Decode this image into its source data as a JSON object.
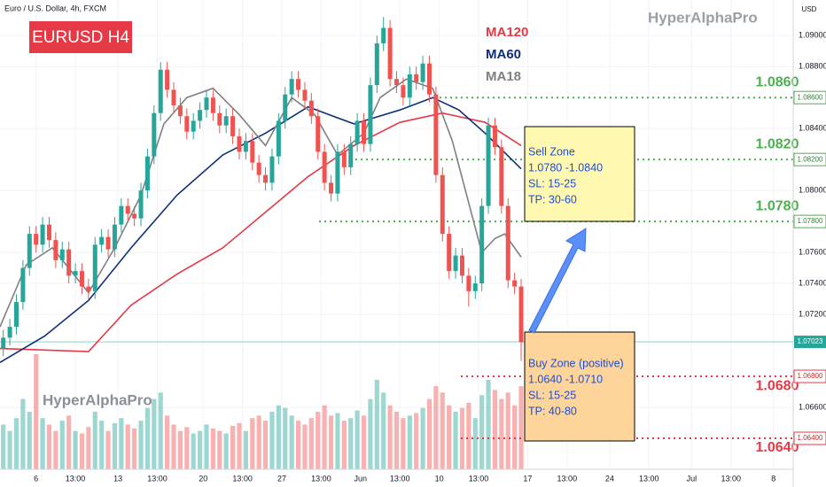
{
  "chart_data": {
    "type": "candlestick",
    "title": "EURUSD H4",
    "subtitle": "Euro / U.S. Dollar, 4h, FXCM",
    "watermark": "HyperAlphaPro",
    "currency": "USD",
    "up_color": "#26a69a",
    "down_color": "#ef5350",
    "open": [
      1.0698,
      1.0705,
      1.0712,
      1.0728,
      1.075,
      1.0772,
      1.0765,
      1.0778,
      1.0768,
      1.0755,
      1.0762,
      1.0745,
      1.0748,
      1.0738,
      1.0735,
      1.0765,
      1.077,
      1.0762,
      1.0778,
      1.079,
      1.0785,
      1.0782,
      1.08,
      1.0822,
      1.085,
      1.0878,
      1.0865,
      1.0855,
      1.0848,
      1.0838,
      1.0845,
      1.0852,
      1.086,
      1.085,
      1.0842,
      1.0848,
      1.0835,
      1.0825,
      1.0832,
      1.0818,
      1.081,
      1.0805,
      1.0822,
      1.0845,
      1.0862,
      1.0872,
      1.0865,
      1.0858,
      1.0848,
      1.0825,
      1.0805,
      1.0798,
      1.0825,
      1.0815,
      1.083,
      1.0845,
      1.083,
      1.0868,
      1.0895,
      1.0905,
      1.0872,
      1.0868,
      1.086,
      1.0875,
      1.087,
      1.0882,
      1.0862,
      1.081,
      1.0772,
      1.0748,
      1.0758,
      1.0745,
      1.0735,
      1.074,
      1.079,
      1.0842,
      1.0828,
      1.079,
      1.0742,
      1.0738
    ],
    "high": [
      1.071,
      1.0717,
      1.0733,
      1.0755,
      1.0777,
      1.0777,
      1.0783,
      1.0783,
      1.0773,
      1.0767,
      1.0767,
      1.0753,
      1.0753,
      1.0743,
      1.077,
      1.0775,
      1.0775,
      1.0783,
      1.0795,
      1.0795,
      1.079,
      1.0805,
      1.0827,
      1.0855,
      1.0883,
      1.0883,
      1.087,
      1.086,
      1.0853,
      1.085,
      1.0857,
      1.0865,
      1.0865,
      1.0855,
      1.0853,
      1.0853,
      1.084,
      1.0837,
      1.0837,
      1.0823,
      1.0815,
      1.0827,
      1.085,
      1.0867,
      1.0877,
      1.0877,
      1.087,
      1.0863,
      1.0853,
      1.083,
      1.081,
      1.083,
      1.083,
      1.0835,
      1.085,
      1.085,
      1.0873,
      1.09,
      1.0912,
      1.091,
      1.0877,
      1.0873,
      1.088,
      1.088,
      1.0887,
      1.0887,
      1.0867,
      1.0815,
      1.0777,
      1.0763,
      1.0763,
      1.075,
      1.0745,
      1.0795,
      1.0847,
      1.0847,
      1.0833,
      1.0795,
      1.0747,
      1.0743
    ],
    "low": [
      1.0693,
      1.07,
      1.0707,
      1.0723,
      1.0745,
      1.076,
      1.076,
      1.0763,
      1.075,
      1.075,
      1.074,
      1.074,
      1.0733,
      1.073,
      1.073,
      1.076,
      1.0757,
      1.0757,
      1.0773,
      1.078,
      1.0777,
      1.0777,
      1.0795,
      1.0817,
      1.0845,
      1.086,
      1.085,
      1.0843,
      1.0833,
      1.0833,
      1.084,
      1.0847,
      1.0845,
      1.0837,
      1.0837,
      1.083,
      1.082,
      1.082,
      1.0813,
      1.0805,
      1.08,
      1.08,
      1.0817,
      1.084,
      1.0857,
      1.086,
      1.0853,
      1.0843,
      1.082,
      1.08,
      1.0793,
      1.0793,
      1.081,
      1.081,
      1.0825,
      1.0825,
      1.0825,
      1.0863,
      1.089,
      1.0867,
      1.0863,
      1.0855,
      1.0855,
      1.0865,
      1.0865,
      1.0857,
      1.0805,
      1.0767,
      1.0743,
      1.0743,
      1.074,
      1.0725,
      1.073,
      1.0735,
      1.0785,
      1.0823,
      1.0785,
      1.0737,
      1.0733,
      1.069
    ],
    "close": [
      1.0705,
      1.0712,
      1.0728,
      1.075,
      1.0772,
      1.0765,
      1.0778,
      1.0768,
      1.0755,
      1.0762,
      1.0745,
      1.0748,
      1.0738,
      1.0735,
      1.0765,
      1.077,
      1.0762,
      1.0778,
      1.079,
      1.0785,
      1.0782,
      1.08,
      1.0822,
      1.085,
      1.0878,
      1.0865,
      1.0855,
      1.0848,
      1.0838,
      1.0845,
      1.0852,
      1.086,
      1.085,
      1.0842,
      1.0848,
      1.0835,
      1.0825,
      1.0832,
      1.0818,
      1.081,
      1.0805,
      1.0822,
      1.0845,
      1.0862,
      1.0872,
      1.0865,
      1.0858,
      1.0848,
      1.0825,
      1.0805,
      1.0798,
      1.0825,
      1.0815,
      1.083,
      1.0845,
      1.083,
      1.0868,
      1.0895,
      1.0905,
      1.0872,
      1.0868,
      1.086,
      1.0875,
      1.087,
      1.0882,
      1.0862,
      1.081,
      1.0772,
      1.0748,
      1.0758,
      1.0745,
      1.0735,
      1.074,
      1.079,
      1.0842,
      1.0828,
      1.079,
      1.0742,
      1.0738,
      1.0702
    ],
    "volume": [
      35,
      30,
      40,
      55,
      45,
      90,
      40,
      35,
      30,
      38,
      42,
      30,
      28,
      33,
      45,
      38,
      30,
      36,
      40,
      35,
      32,
      38,
      48,
      55,
      60,
      42,
      35,
      30,
      33,
      28,
      30,
      35,
      32,
      30,
      28,
      34,
      36,
      30,
      40,
      42,
      38,
      45,
      50,
      48,
      42,
      38,
      35,
      40,
      45,
      50,
      42,
      44,
      38,
      40,
      46,
      42,
      55,
      70,
      60,
      50,
      45,
      40,
      42,
      44,
      48,
      55,
      65,
      60,
      50,
      45,
      48,
      52,
      40,
      58,
      70,
      62,
      55,
      60,
      50,
      65
    ],
    "moving_averages": [
      {
        "name": "MA120",
        "color": "#e53945",
        "x": [
          0,
          13.5,
          20,
          27,
          34,
          40.5,
          47,
          54,
          61,
          67.5,
          74,
          79.5
        ],
        "values": [
          1.0698,
          1.0696,
          1.0726,
          1.0746,
          1.0763,
          1.0786,
          1.0809,
          1.0829,
          1.0844,
          1.085,
          1.0844,
          1.0829
        ]
      },
      {
        "name": "MA60",
        "color": "#0d2f7a",
        "x": [
          0,
          6.8,
          13.5,
          20,
          27,
          34,
          40.5,
          47,
          54,
          61,
          66,
          70,
          74,
          79.5
        ],
        "values": [
          1.0689,
          1.0706,
          1.0729,
          1.0763,
          1.0797,
          1.0823,
          1.0837,
          1.0854,
          1.0843,
          1.0852,
          1.086,
          1.0852,
          1.0837,
          1.0814
        ]
      },
      {
        "name": "MA18",
        "color": "#808080",
        "x": [
          0,
          4,
          8,
          13.5,
          17.5,
          21.5,
          25,
          28.5,
          32.5,
          36.5,
          40.5,
          44.5,
          48,
          51.5,
          55.5,
          58,
          62,
          66,
          69,
          71.5,
          73.5,
          75.5,
          77,
          79.5
        ],
        "values": [
          1.0712,
          1.0752,
          1.0763,
          1.0734,
          1.0763,
          1.0797,
          1.0843,
          1.086,
          1.0866,
          1.0849,
          1.0829,
          1.086,
          1.0849,
          1.0823,
          1.0837,
          1.086,
          1.0872,
          1.0866,
          1.0832,
          1.0792,
          1.076,
          1.0769,
          1.0772,
          1.0757
        ]
      }
    ],
    "levels": [
      {
        "value": 1.086,
        "label": "1.0860",
        "tag": "1.08600",
        "color": "#4caf50"
      },
      {
        "value": 1.082,
        "label": "1.0820",
        "tag": "1.08200",
        "color": "#4caf50"
      },
      {
        "value": 1.078,
        "label": "1.0780",
        "tag": "1.07800",
        "color": "#4caf50"
      },
      {
        "value": 1.068,
        "label": "1.0680",
        "tag": "1.06800",
        "color": "#e53945"
      },
      {
        "value": 1.064,
        "label": "1.0640",
        "tag": "1.06400",
        "color": "#e53945"
      }
    ],
    "last_price": {
      "value": 1.07023,
      "label": "1.07023",
      "color": "#26a69a"
    },
    "zones": [
      {
        "lines": [
          "Sell Zone",
          "1.0780 -1.0840",
          "SL: 15-25",
          "TP: 30-60"
        ],
        "color": "#fff8b0"
      },
      {
        "lines": [
          "Buy Zone (positive)",
          "1.0640 -1.0710",
          "SL: 15-25",
          "TP: 40-80"
        ],
        "color": "#fdd59b"
      }
    ],
    "xlim": [
      0,
      121
    ],
    "ylim": [
      1.062,
      1.0923
    ],
    "xticks": [
      {
        "value": 5.5,
        "label": "6"
      },
      {
        "value": 11.5,
        "label": "13:00"
      },
      {
        "value": 18,
        "label": "13"
      },
      {
        "value": 24,
        "label": "13:00"
      },
      {
        "value": 31,
        "label": "20"
      },
      {
        "value": 37,
        "label": "13:00"
      },
      {
        "value": 43,
        "label": "27"
      },
      {
        "value": 49,
        "label": "13:00"
      },
      {
        "value": 55,
        "label": "Jun"
      },
      {
        "value": 61,
        "label": "13:00"
      },
      {
        "value": 67,
        "label": "10"
      },
      {
        "value": 73,
        "label": "13:00"
      },
      {
        "value": 80.5,
        "label": "17"
      },
      {
        "value": 86.5,
        "label": "13:00"
      },
      {
        "value": 93,
        "label": "24"
      },
      {
        "value": 99,
        "label": "13:00"
      },
      {
        "value": 105.5,
        "label": "Jul"
      },
      {
        "value": 111.5,
        "label": "13:00"
      },
      {
        "value": 118,
        "label": "8"
      }
    ],
    "yticks": [
      {
        "value": 1.09,
        "label": "1.09000"
      },
      {
        "value": 1.088,
        "label": "1.08800"
      },
      {
        "value": 1.084,
        "label": "1.08400"
      },
      {
        "value": 1.08,
        "label": "1.08000"
      },
      {
        "value": 1.076,
        "label": "1.07600"
      },
      {
        "value": 1.074,
        "label": "1.07400"
      },
      {
        "value": 1.072,
        "label": "1.07200"
      },
      {
        "value": 1.066,
        "label": "1.06600"
      }
    ],
    "grid": true
  }
}
